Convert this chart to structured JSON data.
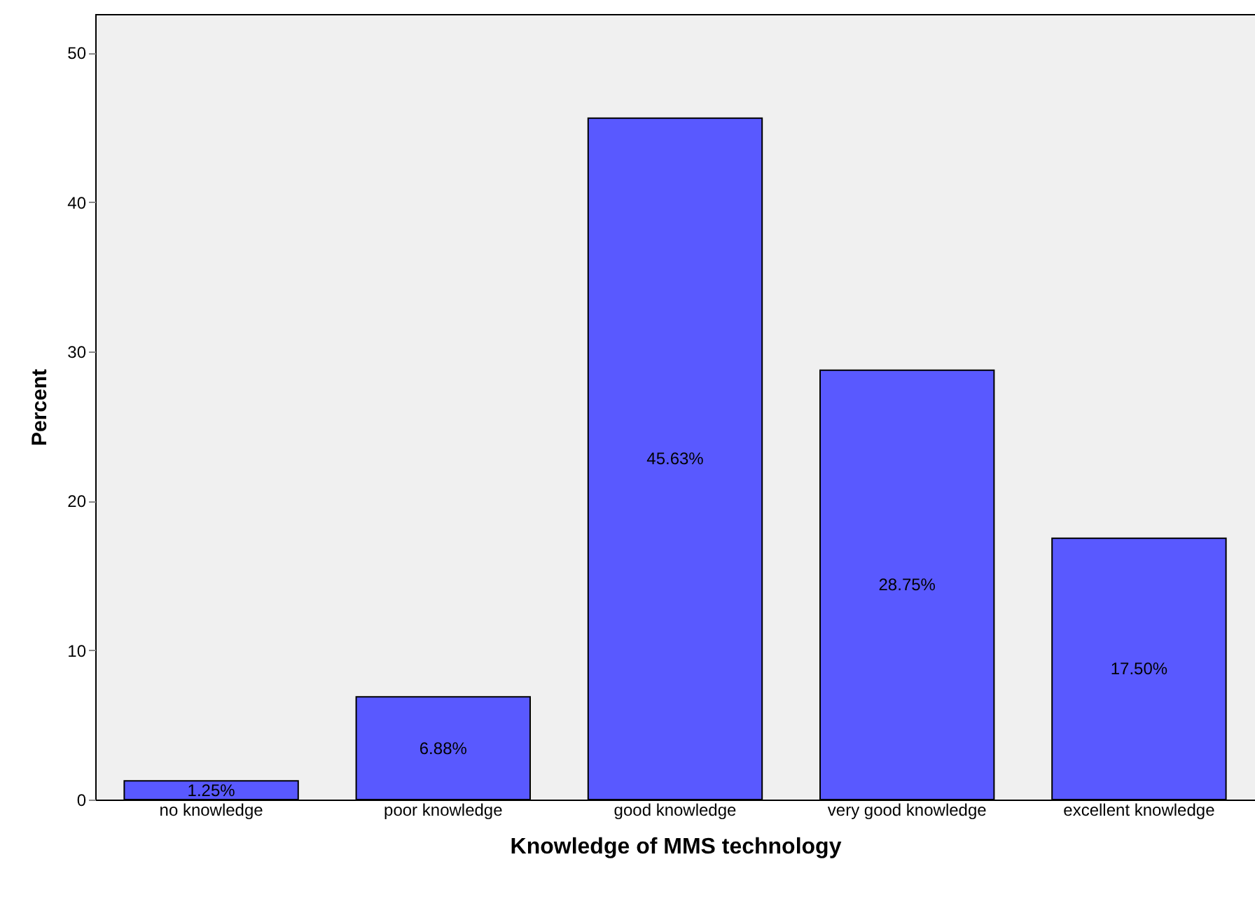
{
  "chart_data": {
    "type": "bar",
    "xlabel": "Knowledge of MMS technology",
    "ylabel": "Percent",
    "categories": [
      "no knowledge",
      "poor knowledge",
      "good knowledge",
      "very good knowledge",
      "excellent knowledge"
    ],
    "values": [
      1.25,
      6.88,
      45.63,
      28.75,
      17.5
    ],
    "value_labels": [
      "1.25%",
      "6.88%",
      "45.63%",
      "28.75%",
      "17.50%"
    ],
    "color": "#5959ff",
    "ylim": [
      0,
      52.6
    ],
    "yticks": [
      0,
      10,
      20,
      30,
      40,
      50
    ],
    "grid": false
  }
}
